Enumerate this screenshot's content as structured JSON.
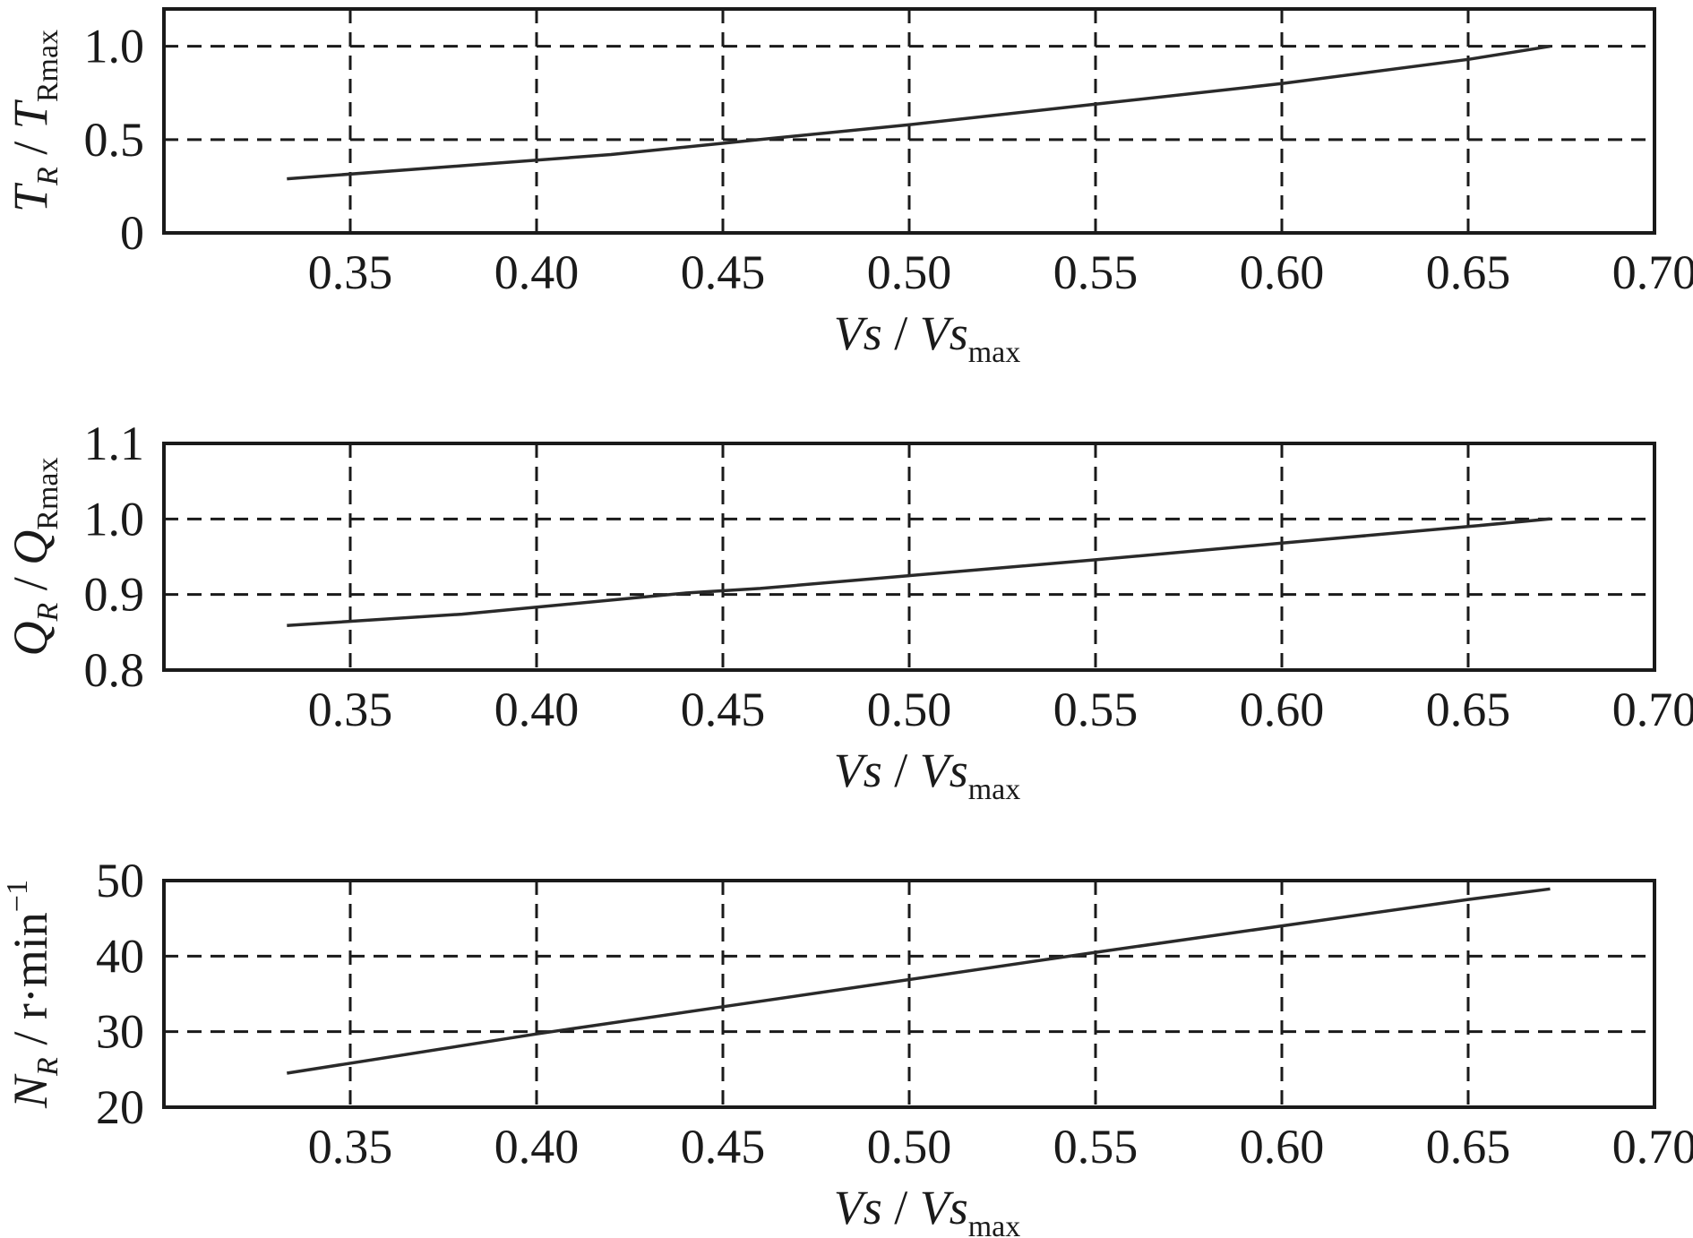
{
  "chart_data": [
    {
      "type": "line",
      "xlabel": {
        "main": "Vs",
        "sep": " / ",
        "main2": "Vs",
        "sub": "max"
      },
      "ylabel": {
        "main": "T",
        "sub": "R",
        "sep": " / ",
        "main2": "T",
        "sub2": "Rmax"
      },
      "xlim": [
        0.3,
        0.7
      ],
      "ylim": [
        0,
        1.2
      ],
      "xticks": [
        0.35,
        0.4,
        0.45,
        0.5,
        0.55,
        0.6,
        0.65,
        0.7
      ],
      "xtick_labels": [
        "0.35",
        "0.40",
        "0.45",
        "0.50",
        "0.55",
        "0.60",
        "0.65",
        "0.70"
      ],
      "yticks": [
        0,
        0.5,
        1.0
      ],
      "ytick_labels": [
        "0",
        "0.5",
        "1.0"
      ],
      "ygrid": [
        0.5,
        1.0
      ],
      "grid": true,
      "series": [
        {
          "x": [
            0.333,
            0.38,
            0.42,
            0.46,
            0.5,
            0.55,
            0.6,
            0.65,
            0.672
          ],
          "y": [
            0.29,
            0.36,
            0.42,
            0.5,
            0.58,
            0.69,
            0.8,
            0.93,
            1.0
          ]
        }
      ]
    },
    {
      "type": "line",
      "xlabel": {
        "main": "Vs",
        "sep": " / ",
        "main2": "Vs",
        "sub": "max"
      },
      "ylabel": {
        "main": "Q",
        "sub": "R",
        "sep": " / ",
        "main2": "Q",
        "sub2": "Rmax"
      },
      "xlim": [
        0.3,
        0.7
      ],
      "ylim": [
        0.8,
        1.1
      ],
      "xticks": [
        0.35,
        0.4,
        0.45,
        0.5,
        0.55,
        0.6,
        0.65,
        0.7
      ],
      "xtick_labels": [
        "0.35",
        "0.40",
        "0.45",
        "0.50",
        "0.55",
        "0.60",
        "0.65",
        "0.70"
      ],
      "yticks": [
        0.8,
        0.9,
        1.0,
        1.1
      ],
      "ytick_labels": [
        "0.8",
        "0.9",
        "1.0",
        "1.1"
      ],
      "ygrid": [
        0.9,
        1.0
      ],
      "grid": true,
      "series": [
        {
          "x": [
            0.333,
            0.38,
            0.44,
            0.46,
            0.5,
            0.55,
            0.6,
            0.65,
            0.672
          ],
          "y": [
            0.859,
            0.874,
            0.902,
            0.908,
            0.925,
            0.946,
            0.968,
            0.99,
            1.0
          ]
        }
      ]
    },
    {
      "type": "line",
      "xlabel": {
        "main": "Vs",
        "sep": " / ",
        "main2": "Vs",
        "sub": "max"
      },
      "ylabel": {
        "main": "N",
        "sub": "R",
        "sep": " / r·min",
        "sup": "−1"
      },
      "xlim": [
        0.3,
        0.7
      ],
      "ylim": [
        20,
        50
      ],
      "xticks": [
        0.35,
        0.4,
        0.45,
        0.5,
        0.55,
        0.6,
        0.65,
        0.7
      ],
      "xtick_labels": [
        "0.35",
        "0.40",
        "0.45",
        "0.50",
        "0.55",
        "0.60",
        "0.65",
        "0.70"
      ],
      "yticks": [
        20,
        30,
        40,
        50
      ],
      "ytick_labels": [
        "20",
        "30",
        "40",
        "50"
      ],
      "ygrid": [
        30,
        40
      ],
      "grid": true,
      "series": [
        {
          "x": [
            0.333,
            0.4,
            0.45,
            0.5,
            0.55,
            0.6,
            0.65,
            0.672
          ],
          "y": [
            24.5,
            29.7,
            33.3,
            36.9,
            40.5,
            44.0,
            47.5,
            48.9
          ]
        }
      ]
    }
  ]
}
